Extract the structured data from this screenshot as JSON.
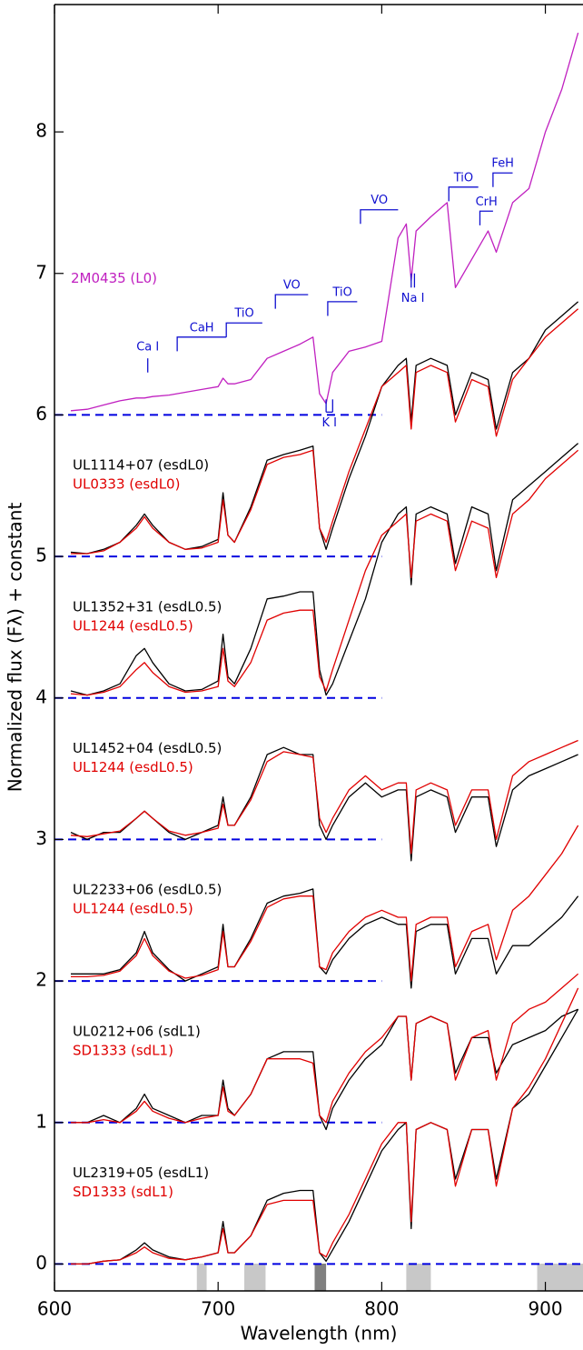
{
  "chart_data": {
    "type": "line",
    "x_label": "Wavelength (nm)",
    "y_label": "Normalized flux (Fλ) + constant",
    "xlim": [
      600,
      923
    ],
    "ylim": [
      -0.19,
      8.9
    ],
    "xticks": [
      600,
      700,
      800,
      900
    ],
    "yticks": [
      0,
      1,
      2,
      3,
      4,
      5,
      6,
      7,
      8
    ],
    "x": [
      610,
      620,
      630,
      640,
      650,
      655,
      660,
      670,
      680,
      690,
      700,
      703,
      706,
      710,
      720,
      730,
      740,
      750,
      758,
      762,
      766,
      770,
      780,
      790,
      800,
      810,
      815,
      818,
      821,
      830,
      840,
      845,
      855,
      865,
      870,
      880,
      890,
      900,
      910,
      920
    ],
    "series": [
      {
        "name": "2M0435 (L0)",
        "color": "#c020c0",
        "values": [
          6.03,
          6.04,
          6.07,
          6.1,
          6.12,
          6.12,
          6.13,
          6.14,
          6.16,
          6.18,
          6.2,
          6.26,
          6.22,
          6.22,
          6.25,
          6.4,
          6.45,
          6.5,
          6.55,
          6.15,
          6.08,
          6.3,
          6.45,
          6.48,
          6.52,
          7.25,
          7.35,
          6.95,
          7.3,
          7.4,
          7.5,
          6.9,
          7.1,
          7.3,
          7.15,
          7.5,
          7.6,
          8.0,
          8.3,
          8.7
        ]
      },
      {
        "name": "UL1114+07 (esdL0)",
        "color": "#000000",
        "values": [
          5.03,
          5.02,
          5.05,
          5.1,
          5.22,
          5.3,
          5.22,
          5.1,
          5.05,
          5.07,
          5.12,
          5.45,
          5.15,
          5.1,
          5.35,
          5.68,
          5.72,
          5.75,
          5.78,
          5.2,
          5.05,
          5.2,
          5.55,
          5.85,
          6.2,
          6.35,
          6.4,
          5.95,
          6.35,
          6.4,
          6.35,
          6.0,
          6.3,
          6.25,
          5.9,
          6.3,
          6.4,
          6.6,
          6.7,
          6.8
        ]
      },
      {
        "name": "UL0333 (esdL0)",
        "color": "#e00000",
        "values": [
          5.02,
          5.02,
          5.04,
          5.1,
          5.2,
          5.28,
          5.2,
          5.1,
          5.05,
          5.06,
          5.1,
          5.4,
          5.15,
          5.1,
          5.33,
          5.65,
          5.7,
          5.72,
          5.75,
          5.2,
          5.1,
          5.25,
          5.6,
          5.9,
          6.2,
          6.3,
          6.35,
          5.9,
          6.3,
          6.35,
          6.3,
          5.95,
          6.25,
          6.2,
          5.85,
          6.25,
          6.4,
          6.55,
          6.65,
          6.75
        ]
      },
      {
        "name": "UL1352+31 (esdL0.5)",
        "color": "#000000",
        "values": [
          4.05,
          4.02,
          4.05,
          4.1,
          4.3,
          4.35,
          4.25,
          4.1,
          4.05,
          4.06,
          4.12,
          4.45,
          4.15,
          4.1,
          4.35,
          4.7,
          4.72,
          4.75,
          4.75,
          4.2,
          4.02,
          4.1,
          4.4,
          4.7,
          5.1,
          5.3,
          5.35,
          4.8,
          5.3,
          5.35,
          5.3,
          4.95,
          5.35,
          5.3,
          4.9,
          5.4,
          5.5,
          5.6,
          5.7,
          5.8
        ]
      },
      {
        "name": "UL1244 (esdL0.5)",
        "color": "#e00000",
        "values": [
          4.03,
          4.02,
          4.04,
          4.08,
          4.2,
          4.25,
          4.18,
          4.08,
          4.04,
          4.05,
          4.08,
          4.35,
          4.12,
          4.08,
          4.25,
          4.55,
          4.6,
          4.62,
          4.62,
          4.15,
          4.05,
          4.2,
          4.55,
          4.9,
          5.15,
          5.25,
          5.3,
          4.85,
          5.25,
          5.3,
          5.25,
          4.9,
          5.25,
          5.2,
          4.85,
          5.3,
          5.4,
          5.55,
          5.65,
          5.75
        ]
      },
      {
        "name": "UL1452+04 (esdL0.5)",
        "color": "#000000",
        "values": [
          3.05,
          3.0,
          3.05,
          3.05,
          3.15,
          3.2,
          3.15,
          3.05,
          3.0,
          3.05,
          3.1,
          3.3,
          3.1,
          3.1,
          3.3,
          3.6,
          3.65,
          3.6,
          3.6,
          3.1,
          3.0,
          3.1,
          3.3,
          3.4,
          3.3,
          3.35,
          3.35,
          2.85,
          3.3,
          3.35,
          3.3,
          3.05,
          3.3,
          3.3,
          2.95,
          3.35,
          3.45,
          3.5,
          3.55,
          3.6
        ]
      },
      {
        "name": "UL1244 (esdL0.5)",
        "color": "#e00000",
        "values": [
          3.03,
          3.02,
          3.04,
          3.06,
          3.15,
          3.2,
          3.15,
          3.06,
          3.03,
          3.05,
          3.08,
          3.25,
          3.1,
          3.1,
          3.28,
          3.55,
          3.62,
          3.6,
          3.58,
          3.15,
          3.05,
          3.15,
          3.35,
          3.45,
          3.35,
          3.4,
          3.4,
          2.9,
          3.35,
          3.4,
          3.35,
          3.1,
          3.35,
          3.35,
          3.0,
          3.45,
          3.55,
          3.6,
          3.65,
          3.7
        ]
      },
      {
        "name": "UL2233+06 (esdL0.5)",
        "color": "#000000",
        "values": [
          2.05,
          2.05,
          2.05,
          2.08,
          2.2,
          2.35,
          2.2,
          2.08,
          2.0,
          2.05,
          2.1,
          2.4,
          2.1,
          2.1,
          2.3,
          2.55,
          2.6,
          2.62,
          2.65,
          2.1,
          2.05,
          2.15,
          2.3,
          2.4,
          2.45,
          2.4,
          2.4,
          1.95,
          2.35,
          2.4,
          2.4,
          2.05,
          2.3,
          2.3,
          2.05,
          2.25,
          2.25,
          2.35,
          2.45,
          2.6
        ]
      },
      {
        "name": "UL1244 (esdL0.5)",
        "color": "#e00000",
        "values": [
          2.03,
          2.03,
          2.04,
          2.07,
          2.18,
          2.3,
          2.18,
          2.07,
          2.02,
          2.04,
          2.08,
          2.35,
          2.1,
          2.1,
          2.28,
          2.52,
          2.58,
          2.6,
          2.6,
          2.1,
          2.08,
          2.2,
          2.35,
          2.45,
          2.5,
          2.45,
          2.45,
          2.0,
          2.4,
          2.45,
          2.45,
          2.1,
          2.35,
          2.4,
          2.15,
          2.5,
          2.6,
          2.75,
          2.9,
          3.1
        ]
      },
      {
        "name": "UL0212+06 (sdL1)",
        "color": "#000000",
        "values": [
          1.0,
          1.0,
          1.05,
          1.0,
          1.1,
          1.2,
          1.1,
          1.05,
          1.0,
          1.05,
          1.05,
          1.3,
          1.1,
          1.05,
          1.2,
          1.45,
          1.5,
          1.5,
          1.5,
          1.05,
          0.95,
          1.1,
          1.3,
          1.45,
          1.55,
          1.75,
          1.75,
          1.3,
          1.7,
          1.75,
          1.7,
          1.35,
          1.6,
          1.6,
          1.35,
          1.55,
          1.6,
          1.65,
          1.75,
          1.8
        ]
      },
      {
        "name": "SD1333 (sdL1)",
        "color": "#e00000",
        "values": [
          1.0,
          1.0,
          1.02,
          1.0,
          1.08,
          1.15,
          1.08,
          1.03,
          1.0,
          1.03,
          1.05,
          1.25,
          1.08,
          1.05,
          1.2,
          1.45,
          1.45,
          1.45,
          1.42,
          1.05,
          1.0,
          1.15,
          1.35,
          1.5,
          1.6,
          1.75,
          1.75,
          1.3,
          1.7,
          1.75,
          1.7,
          1.3,
          1.6,
          1.65,
          1.3,
          1.7,
          1.8,
          1.85,
          1.95,
          2.05
        ]
      },
      {
        "name": "UL2319+05 (esdL1)",
        "color": "#000000",
        "values": [
          0.0,
          0.0,
          0.02,
          0.03,
          0.1,
          0.15,
          0.1,
          0.05,
          0.03,
          0.05,
          0.08,
          0.3,
          0.08,
          0.08,
          0.2,
          0.45,
          0.5,
          0.52,
          0.52,
          0.08,
          0.02,
          0.1,
          0.3,
          0.55,
          0.8,
          0.95,
          1.0,
          0.25,
          0.95,
          1.0,
          0.95,
          0.6,
          0.95,
          0.95,
          0.6,
          1.1,
          1.2,
          1.4,
          1.6,
          1.8
        ]
      },
      {
        "name": "SD1333 (sdL1)",
        "color": "#e00000",
        "values": [
          0.0,
          0.0,
          0.02,
          0.03,
          0.08,
          0.12,
          0.08,
          0.04,
          0.03,
          0.05,
          0.08,
          0.25,
          0.08,
          0.08,
          0.2,
          0.42,
          0.45,
          0.45,
          0.45,
          0.08,
          0.05,
          0.15,
          0.35,
          0.6,
          0.85,
          1.0,
          1.0,
          0.3,
          0.95,
          1.0,
          0.95,
          0.55,
          0.95,
          0.95,
          0.55,
          1.1,
          1.25,
          1.45,
          1.7,
          1.95
        ]
      }
    ],
    "reference_lines": [
      {
        "value": 6,
        "x": [
          600,
          800
        ]
      },
      {
        "value": 5,
        "x": [
          600,
          800
        ]
      },
      {
        "value": 4,
        "x": [
          600,
          800
        ]
      },
      {
        "value": 3,
        "x": [
          600,
          800
        ]
      },
      {
        "value": 2,
        "x": [
          600,
          800
        ]
      },
      {
        "value": 1,
        "x": [
          600,
          800
        ]
      },
      {
        "value": 0,
        "x": [
          600,
          923
        ]
      }
    ],
    "reference_color": "#0000e0",
    "bands": [
      {
        "x": [
          687,
          693
        ],
        "color": "#c8c8c8"
      },
      {
        "x": [
          716,
          729
        ],
        "color": "#c8c8c8"
      },
      {
        "x": [
          759,
          766
        ],
        "color": "#808080"
      },
      {
        "x": [
          815,
          830
        ],
        "color": "#c8c8c8"
      },
      {
        "x": [
          895,
          923
        ],
        "color": "#c8c8c8"
      }
    ],
    "annotation_color": "#1010d0",
    "annotations": [
      {
        "label": "Ca I",
        "kind": "line",
        "x": [
          657
        ],
        "y": [
          6.3,
          6.4
        ]
      },
      {
        "label": "CaH",
        "kind": "bracket",
        "x": [
          675,
          705
        ],
        "y": [
          6.45,
          6.55
        ]
      },
      {
        "label": "TiO",
        "kind": "bracket",
        "x": [
          705,
          727
        ],
        "y": [
          6.55,
          6.65
        ]
      },
      {
        "label": "VO",
        "kind": "bracket",
        "x": [
          735,
          755
        ],
        "y": [
          6.75,
          6.85
        ]
      },
      {
        "label": "TiO",
        "kind": "bracket",
        "x": [
          767,
          785
        ],
        "y": [
          6.7,
          6.8
        ]
      },
      {
        "label": "VO",
        "kind": "bracket",
        "x": [
          787,
          810
        ],
        "y": [
          7.35,
          7.45
        ]
      },
      {
        "label": "TiO",
        "kind": "bracket",
        "x": [
          841,
          859
        ],
        "y": [
          7.51,
          7.61
        ]
      },
      {
        "label": "CrH",
        "kind": "bracket",
        "x": [
          860,
          868
        ],
        "y": [
          7.34,
          7.44
        ]
      },
      {
        "label": "FeH",
        "kind": "bracket",
        "x": [
          868,
          880
        ],
        "y": [
          7.61,
          7.71
        ]
      },
      {
        "label": "Na I",
        "kind": "double-below",
        "x": [
          818,
          820
        ],
        "y": [
          6.9,
          7.0
        ]
      },
      {
        "label": "K I",
        "kind": "double-below",
        "x": [
          766,
          770
        ],
        "y": [
          6.02,
          6.11
        ]
      }
    ]
  }
}
